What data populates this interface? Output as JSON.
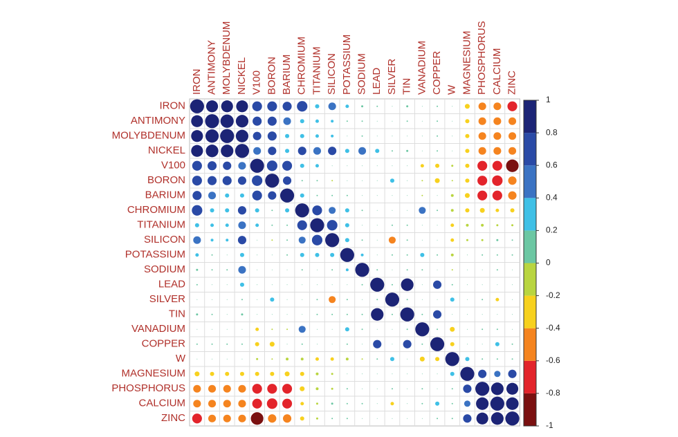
{
  "chart_data": {
    "type": "corrplot",
    "categories": [
      "IRON",
      "ANTIMONY",
      "MOLYBDENUM",
      "NICKEL",
      "V100",
      "BORON",
      "BARIUM",
      "CHROMIUM",
      "TITANIUM",
      "SILICON",
      "POTASSIUM",
      "SODIUM",
      "LEAD",
      "SILVER",
      "TIN",
      "VANADIUM",
      "COPPER",
      "W",
      "MAGNESIUM",
      "PHOSPHORUS",
      "CALCIUM",
      "ZINC"
    ],
    "values": [
      [
        1,
        0.85,
        0.85,
        0.85,
        0.7,
        0.7,
        0.65,
        0.75,
        0.3,
        0.55,
        0.25,
        0.15,
        0.1,
        0.05,
        0.15,
        0.05,
        0.1,
        0.05,
        -0.35,
        -0.55,
        -0.55,
        -0.7
      ],
      [
        0.85,
        1,
        0.95,
        0.9,
        0.65,
        0.65,
        0.55,
        0.3,
        0.25,
        0.2,
        0.1,
        0.1,
        0.05,
        0.05,
        0.1,
        0.05,
        0.1,
        0.05,
        -0.3,
        -0.55,
        -0.55,
        -0.55
      ],
      [
        0.85,
        0.95,
        1,
        0.9,
        0.6,
        0.65,
        0.3,
        0.3,
        0.25,
        0.2,
        0.05,
        0.1,
        0.05,
        0.05,
        0.05,
        0.05,
        0.1,
        0.05,
        -0.3,
        -0.55,
        -0.55,
        -0.55
      ],
      [
        0.85,
        0.9,
        0.9,
        1,
        0.55,
        0.6,
        0.3,
        0.6,
        0.55,
        0.6,
        0.3,
        0.55,
        0.3,
        0.1,
        0.15,
        0.05,
        0.1,
        0.05,
        -0.3,
        -0.55,
        -0.55,
        -0.55
      ],
      [
        0.7,
        0.65,
        0.6,
        0.55,
        1,
        0.75,
        0.7,
        0.3,
        0.25,
        0.05,
        0.05,
        0.05,
        0.05,
        0.05,
        0.05,
        -0.25,
        -0.3,
        -0.15,
        -0.3,
        -0.7,
        -0.7,
        -0.9
      ],
      [
        0.7,
        0.65,
        0.65,
        0.6,
        0.75,
        1,
        0.6,
        0.1,
        0.1,
        -0.1,
        0.05,
        0.05,
        0.05,
        0.3,
        0.05,
        -0.1,
        -0.35,
        -0.1,
        -0.3,
        -0.7,
        -0.75,
        -0.6
      ],
      [
        0.65,
        0.55,
        0.3,
        0.3,
        0.7,
        0.6,
        1,
        0.3,
        0.1,
        0.1,
        0.1,
        0.05,
        0.05,
        0.05,
        0.05,
        -0.1,
        0.05,
        -0.2,
        -0.35,
        -0.7,
        -0.7,
        -0.6
      ],
      [
        0.75,
        0.3,
        0.3,
        0.6,
        0.3,
        0.1,
        0.3,
        1,
        0.7,
        0.5,
        0.3,
        0.1,
        0.05,
        0.05,
        0.05,
        0.5,
        0.1,
        -0.2,
        -0.3,
        -0.35,
        -0.25,
        -0.3
      ],
      [
        0.3,
        0.25,
        0.25,
        0.55,
        0.25,
        0.1,
        0.1,
        0.7,
        1,
        0.75,
        0.3,
        0.05,
        0.05,
        0.1,
        0.1,
        0.05,
        0.05,
        -0.25,
        -0.2,
        -0.2,
        -0.15,
        -0.15
      ],
      [
        0.55,
        0.2,
        0.2,
        0.6,
        0.05,
        -0.1,
        0.1,
        0.5,
        0.75,
        1,
        0.3,
        0.1,
        0.05,
        -0.5,
        0.1,
        0.05,
        0.05,
        -0.25,
        -0.15,
        -0.15,
        0.15,
        0.1
      ],
      [
        0.25,
        0.1,
        0.05,
        0.3,
        0.05,
        0.05,
        0.1,
        0.3,
        0.3,
        0.3,
        1,
        0.2,
        0.05,
        0.1,
        0.1,
        0.3,
        0.1,
        -0.2,
        0.05,
        0.1,
        0.1,
        0.1
      ],
      [
        0.15,
        0.1,
        0.1,
        0.55,
        0.05,
        0.05,
        0.05,
        0.1,
        0.05,
        0.1,
        0.2,
        1,
        0.1,
        0.05,
        0.1,
        0.1,
        0.05,
        -0.1,
        0.05,
        0.05,
        0.1,
        0.05
      ],
      [
        0.1,
        0.05,
        0.05,
        0.3,
        0.05,
        0.05,
        0.05,
        0.05,
        0.05,
        0.05,
        0.05,
        0.1,
        1,
        0.1,
        0.9,
        0.05,
        0.6,
        0.1,
        0.05,
        0.05,
        0.05,
        0.05
      ],
      [
        0.05,
        0.05,
        0.05,
        0.1,
        0.05,
        0.3,
        0.05,
        0.05,
        0.1,
        -0.5,
        0.1,
        0.05,
        0.1,
        1,
        0.1,
        0.05,
        0.05,
        0.3,
        0.05,
        0.1,
        -0.25,
        0.05
      ],
      [
        0.15,
        0.1,
        0.05,
        0.15,
        0.05,
        0.05,
        0.05,
        0.05,
        0.1,
        0.1,
        0.1,
        0.1,
        0.9,
        0.1,
        1,
        0.1,
        0.6,
        0.05,
        0.05,
        0.05,
        0.05,
        0.05
      ],
      [
        0.05,
        0.05,
        0.05,
        0.05,
        -0.25,
        -0.1,
        -0.1,
        0.5,
        0.05,
        0.05,
        0.3,
        0.1,
        0.05,
        0.05,
        0.1,
        1,
        0.1,
        -0.35,
        0.05,
        0.1,
        0.1,
        0.05
      ],
      [
        0.1,
        0.1,
        0.1,
        0.1,
        -0.3,
        -0.35,
        0.05,
        0.1,
        0.05,
        0.05,
        0.1,
        0.05,
        0.6,
        0.05,
        0.6,
        0.1,
        1,
        -0.3,
        0.05,
        0.05,
        0.3,
        0.1
      ],
      [
        0.05,
        0.05,
        0.05,
        0.05,
        -0.15,
        -0.1,
        -0.2,
        -0.2,
        -0.25,
        -0.25,
        -0.2,
        -0.1,
        0.1,
        0.3,
        0.05,
        -0.35,
        -0.3,
        1,
        0.3,
        0.1,
        0.1,
        0.1
      ],
      [
        -0.35,
        -0.3,
        -0.3,
        -0.3,
        -0.3,
        -0.3,
        -0.35,
        -0.3,
        -0.2,
        -0.15,
        0.05,
        0.05,
        0.05,
        0.05,
        0.05,
        0.05,
        0.05,
        0.3,
        1,
        0.6,
        0.45,
        0.6
      ],
      [
        -0.55,
        -0.55,
        -0.55,
        -0.55,
        -0.7,
        -0.7,
        -0.7,
        -0.35,
        -0.2,
        -0.15,
        0.1,
        0.05,
        0.05,
        0.1,
        0.05,
        0.1,
        0.05,
        0.1,
        0.6,
        1,
        0.9,
        0.85
      ],
      [
        -0.55,
        -0.55,
        -0.55,
        -0.55,
        -0.7,
        -0.75,
        -0.7,
        -0.25,
        -0.15,
        0.15,
        0.1,
        0.1,
        0.05,
        -0.25,
        0.05,
        0.1,
        0.3,
        0.1,
        0.45,
        0.9,
        1,
        0.9
      ],
      [
        -0.7,
        -0.55,
        -0.55,
        -0.55,
        -0.9,
        -0.6,
        -0.6,
        -0.3,
        -0.15,
        0.1,
        0.1,
        0.05,
        0.05,
        0.05,
        0.05,
        0.05,
        0.1,
        0.1,
        0.6,
        0.85,
        0.9,
        1
      ]
    ],
    "clim": [
      -1,
      1
    ],
    "cticks": [
      1,
      0.8,
      0.6,
      0.4,
      0.2,
      0,
      -0.2,
      -0.4,
      -0.6,
      -0.8,
      -1
    ],
    "colors": [
      "#7a1010",
      "#e3242b",
      "#f5841f",
      "#f7d11e",
      "#b9d540",
      "#6cc7a3",
      "#3fc0e6",
      "#3b73c3",
      "#2a4aa6",
      "#1c2476"
    ]
  }
}
